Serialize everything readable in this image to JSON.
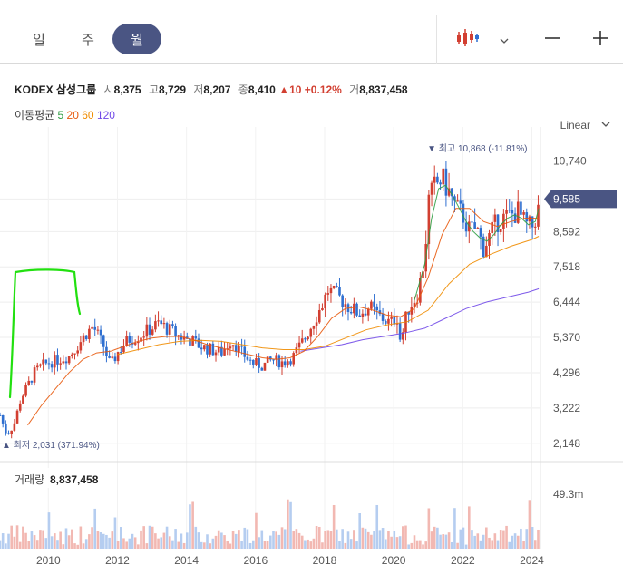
{
  "toolbar": {
    "tabs": [
      {
        "label": "일",
        "active": false
      },
      {
        "label": "주",
        "active": false
      },
      {
        "label": "월",
        "active": true
      }
    ],
    "candle_icon": "candlestick-icon",
    "dropdown_icon": "chevron-down-icon",
    "zoom_out_icon": "minus-icon",
    "zoom_in_icon": "plus-icon"
  },
  "info": {
    "name": "KODEX 삼성그룹",
    "open_label": "시",
    "open": "8,375",
    "high_label": "고",
    "high": "8,729",
    "low_label": "저",
    "low": "8,207",
    "close_label": "종",
    "close": "8,410",
    "change": "▲10",
    "change_pct": "+0.12%",
    "volume_label": "거",
    "volume": "8,837,458"
  },
  "ma_legend": {
    "label": "이동평균",
    "items": [
      {
        "label": "5",
        "color": "#2f9e44"
      },
      {
        "label": "20",
        "color": "#e8590c"
      },
      {
        "label": "60",
        "color": "#f08c00"
      },
      {
        "label": "120",
        "color": "#7048e8"
      }
    ]
  },
  "scale_mode": "Linear",
  "colors": {
    "up": "#d23f31",
    "down": "#2f6fd0",
    "accent": "#4a5583"
  },
  "chart_data": {
    "type": "candlestick",
    "y_ticks": [
      "10,740",
      "9,585",
      "8,592",
      "7,518",
      "6,444",
      "5,370",
      "4,296",
      "3,222",
      "2,148"
    ],
    "y_tick_values": [
      10740,
      9585,
      8592,
      7518,
      6444,
      5370,
      4296,
      3222,
      2148
    ],
    "x_ticks": [
      "2010",
      "2012",
      "2014",
      "2016",
      "2018",
      "2020",
      "2022",
      "2024"
    ],
    "x_tick_values": [
      2010,
      2012,
      2014,
      2016,
      2018,
      2020,
      2022,
      2024
    ],
    "ylim": [
      1700,
      11500
    ],
    "xlim": [
      2008.6,
      2024.25
    ],
    "current_price": "9,585",
    "current_value": 9585,
    "high_annotation": "최고 10,868 (-11.81%)",
    "high_value": 10868,
    "high_x": 2021.05,
    "low_annotation": "최저 2,031 (371.94%)",
    "low_value": 2031,
    "low_x": 2008.8,
    "price_series": [
      [
        2008.6,
        3000
      ],
      [
        2008.8,
        2400
      ],
      [
        2009.0,
        2700
      ],
      [
        2009.2,
        3500
      ],
      [
        2009.4,
        3900
      ],
      [
        2009.6,
        4300
      ],
      [
        2009.8,
        4500
      ],
      [
        2010.0,
        4600
      ],
      [
        2010.3,
        4700
      ],
      [
        2010.6,
        4800
      ],
      [
        2010.9,
        5200
      ],
      [
        2011.1,
        5500
      ],
      [
        2011.3,
        5700
      ],
      [
        2011.6,
        5100
      ],
      [
        2011.8,
        4500
      ],
      [
        2012.0,
        4900
      ],
      [
        2012.3,
        5300
      ],
      [
        2012.6,
        5400
      ],
      [
        2012.9,
        5600
      ],
      [
        2013.2,
        5800
      ],
      [
        2013.5,
        5600
      ],
      [
        2013.8,
        5400
      ],
      [
        2014.1,
        5300
      ],
      [
        2014.4,
        5100
      ],
      [
        2014.7,
        5000
      ],
      [
        2015.0,
        4900
      ],
      [
        2015.3,
        5300
      ],
      [
        2015.6,
        4900
      ],
      [
        2015.9,
        4600
      ],
      [
        2016.2,
        4500
      ],
      [
        2016.5,
        4700
      ],
      [
        2016.8,
        4600
      ],
      [
        2017.1,
        4800
      ],
      [
        2017.4,
        5300
      ],
      [
        2017.7,
        5900
      ],
      [
        2017.9,
        6300
      ],
      [
        2018.1,
        6800
      ],
      [
        2018.4,
        6600
      ],
      [
        2018.7,
        6300
      ],
      [
        2019.0,
        6100
      ],
      [
        2019.3,
        6300
      ],
      [
        2019.6,
        6000
      ],
      [
        2019.9,
        5800
      ],
      [
        2020.1,
        6000
      ],
      [
        2020.2,
        5200
      ],
      [
        2020.4,
        6200
      ],
      [
        2020.7,
        6700
      ],
      [
        2020.9,
        7800
      ],
      [
        2021.0,
        9500
      ],
      [
        2021.2,
        10000
      ],
      [
        2021.4,
        10200
      ],
      [
        2021.6,
        9800
      ],
      [
        2021.8,
        9300
      ],
      [
        2022.0,
        9100
      ],
      [
        2022.2,
        8600
      ],
      [
        2022.4,
        8700
      ],
      [
        2022.6,
        8100
      ],
      [
        2022.8,
        8500
      ],
      [
        2023.0,
        8900
      ],
      [
        2023.2,
        9000
      ],
      [
        2023.4,
        9100
      ],
      [
        2023.6,
        9200
      ],
      [
        2023.8,
        8800
      ],
      [
        2024.0,
        8700
      ],
      [
        2024.2,
        9300
      ]
    ],
    "ma5": [
      [
        2020.6,
        6500
      ],
      [
        2020.9,
        7600
      ],
      [
        2021.1,
        9000
      ],
      [
        2021.3,
        9900
      ],
      [
        2021.5,
        10000
      ],
      [
        2021.7,
        9700
      ],
      [
        2021.9,
        9300
      ],
      [
        2022.1,
        8900
      ],
      [
        2022.3,
        8600
      ],
      [
        2022.5,
        8400
      ],
      [
        2022.7,
        8300
      ],
      [
        2022.9,
        8500
      ],
      [
        2023.1,
        8800
      ],
      [
        2023.3,
        9000
      ],
      [
        2023.5,
        9100
      ],
      [
        2023.7,
        9000
      ],
      [
        2023.9,
        8800
      ],
      [
        2024.1,
        8900
      ],
      [
        2024.2,
        9300
      ]
    ],
    "ma20": [
      [
        2009.4,
        2700
      ],
      [
        2009.8,
        3300
      ],
      [
        2010.2,
        3800
      ],
      [
        2010.6,
        4300
      ],
      [
        2011.0,
        4700
      ],
      [
        2011.4,
        4900
      ],
      [
        2011.8,
        4950
      ],
      [
        2012.2,
        5100
      ],
      [
        2012.6,
        5250
      ],
      [
        2013.0,
        5350
      ],
      [
        2013.4,
        5400
      ],
      [
        2013.8,
        5400
      ],
      [
        2014.2,
        5300
      ],
      [
        2014.6,
        5150
      ],
      [
        2015.0,
        5050
      ],
      [
        2015.4,
        4950
      ],
      [
        2015.8,
        4850
      ],
      [
        2016.2,
        4750
      ],
      [
        2016.6,
        4700
      ],
      [
        2017.0,
        4750
      ],
      [
        2017.4,
        4950
      ],
      [
        2017.8,
        5400
      ],
      [
        2018.2,
        5950
      ],
      [
        2018.6,
        6250
      ],
      [
        2019.0,
        6300
      ],
      [
        2019.4,
        6200
      ],
      [
        2019.8,
        6050
      ],
      [
        2020.2,
        6000
      ],
      [
        2020.6,
        6250
      ],
      [
        2021.0,
        7200
      ],
      [
        2021.4,
        8500
      ],
      [
        2021.8,
        9300
      ],
      [
        2022.2,
        9300
      ],
      [
        2022.6,
        8900
      ],
      [
        2023.0,
        8750
      ],
      [
        2023.4,
        8900
      ],
      [
        2023.8,
        9000
      ],
      [
        2024.2,
        9000
      ]
    ],
    "ma60": [
      [
        2012.0,
        4850
      ],
      [
        2012.6,
        5000
      ],
      [
        2013.2,
        5150
      ],
      [
        2013.8,
        5250
      ],
      [
        2014.4,
        5280
      ],
      [
        2015.0,
        5250
      ],
      [
        2015.6,
        5150
      ],
      [
        2016.2,
        5050
      ],
      [
        2016.8,
        5000
      ],
      [
        2017.4,
        5000
      ],
      [
        2018.0,
        5100
      ],
      [
        2018.6,
        5350
      ],
      [
        2019.2,
        5600
      ],
      [
        2019.8,
        5750
      ],
      [
        2020.4,
        5850
      ],
      [
        2021.0,
        6200
      ],
      [
        2021.6,
        7000
      ],
      [
        2022.2,
        7600
      ],
      [
        2022.8,
        7900
      ],
      [
        2023.4,
        8150
      ],
      [
        2024.0,
        8350
      ],
      [
        2024.2,
        8450
      ]
    ],
    "ma120": [
      [
        2017.3,
        4950
      ],
      [
        2017.9,
        5050
      ],
      [
        2018.5,
        5150
      ],
      [
        2019.1,
        5300
      ],
      [
        2019.7,
        5400
      ],
      [
        2020.3,
        5500
      ],
      [
        2020.9,
        5650
      ],
      [
        2021.5,
        5950
      ],
      [
        2022.1,
        6250
      ],
      [
        2022.7,
        6450
      ],
      [
        2023.3,
        6600
      ],
      [
        2023.9,
        6750
      ],
      [
        2024.2,
        6850
      ]
    ],
    "volume": {
      "label": "거래량",
      "value": "8,837,458",
      "axis_tick": "49.3m",
      "axis_value": 49.3,
      "unit": "m"
    }
  }
}
